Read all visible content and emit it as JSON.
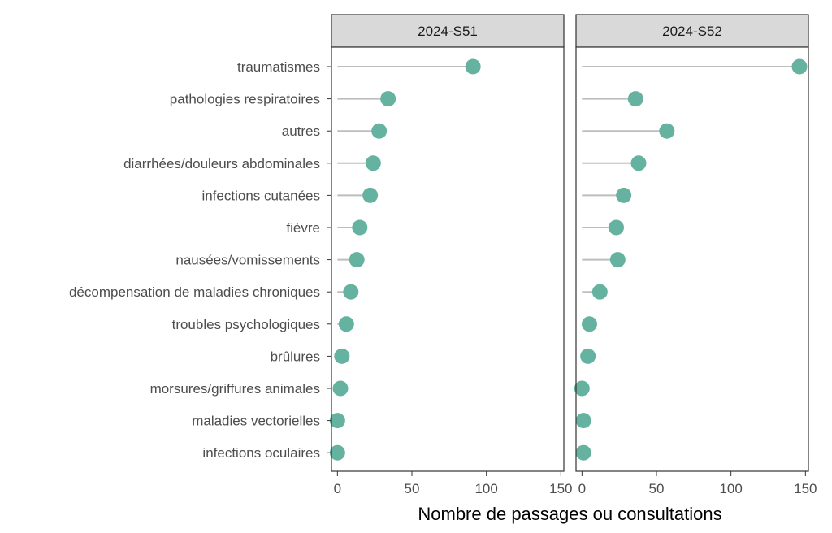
{
  "chart_data": {
    "type": "lollipop",
    "xlabel": "Nombre de passages ou consultations",
    "xlim": [
      -4,
      152
    ],
    "xticks": [
      0,
      50,
      100,
      150
    ],
    "categories": [
      "traumatismes",
      "pathologies respiratoires",
      "autres",
      "diarrhées/douleurs abdominales",
      "infections cutanées",
      "fièvre",
      "nausées/vomissements",
      "décompensation de maladies chroniques",
      "troubles psychologiques",
      "brûlures",
      "morsures/griffures animales",
      "maladies vectorielles",
      "infections oculaires"
    ],
    "panels": [
      {
        "name": "2024-S51",
        "values": [
          91,
          34,
          28,
          24,
          22,
          15,
          13,
          9,
          6,
          3,
          2,
          0,
          0
        ]
      },
      {
        "name": "2024-S52",
        "values": [
          146,
          36,
          57,
          38,
          28,
          23,
          24,
          12,
          5,
          4,
          0,
          1,
          1
        ]
      }
    ],
    "colors": {
      "point": "#66b2a0",
      "segment": "#bdbdbd",
      "strip": "#d9d9d9",
      "frame": "#333333"
    },
    "grid": false
  }
}
